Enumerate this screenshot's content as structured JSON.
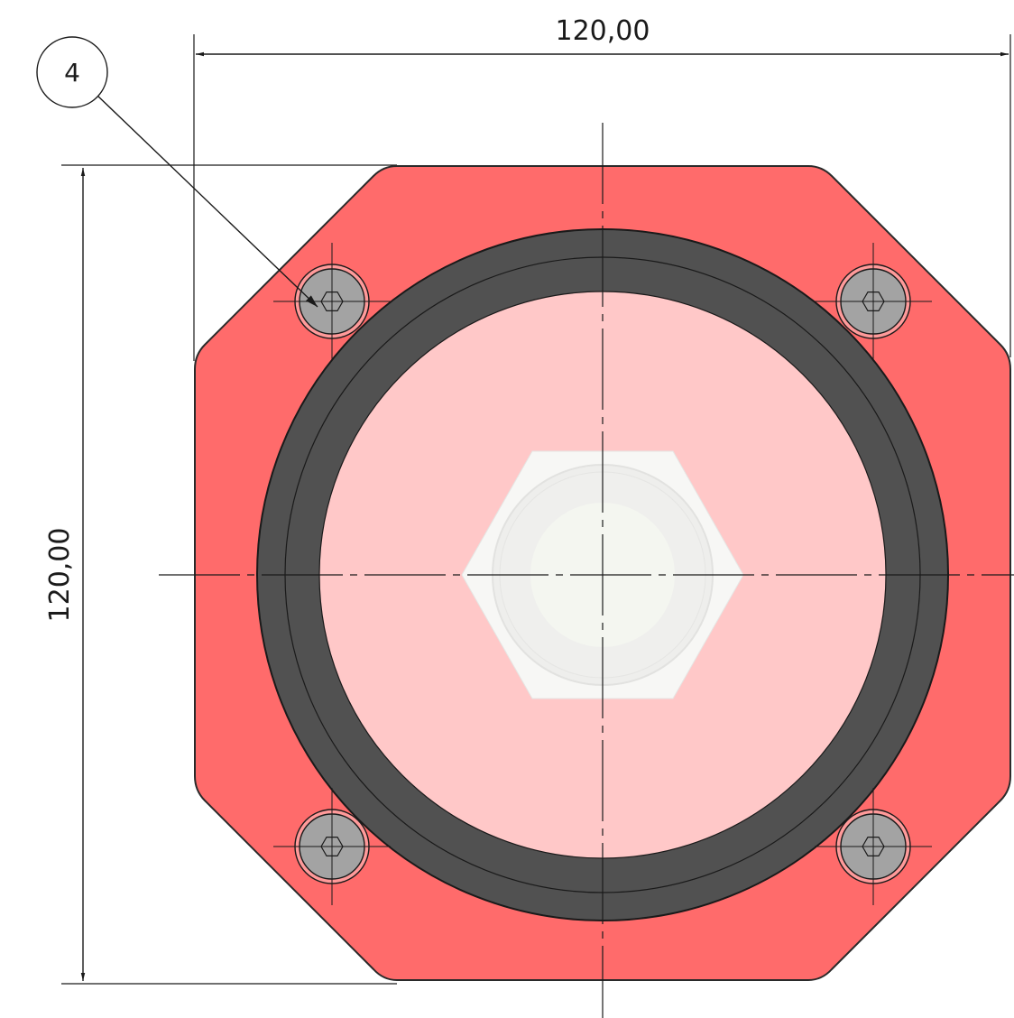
{
  "drawing": {
    "dimensions": {
      "width_label": "120,00",
      "height_label": "120,00"
    },
    "balloon": {
      "label": "4"
    },
    "colors": {
      "plate": "#ff6b6b",
      "plate_outline": "#2a2a2a",
      "face": "#ffc8c8",
      "ring": "#515151",
      "hex_fill": "#f7f7f5",
      "hex_inner": "#eeeeec",
      "hex_core": "#f4f6f0",
      "screw_head": "#a3a3a3",
      "screw_rim": "#ff9a9a",
      "line": "#1a1a1a"
    }
  }
}
